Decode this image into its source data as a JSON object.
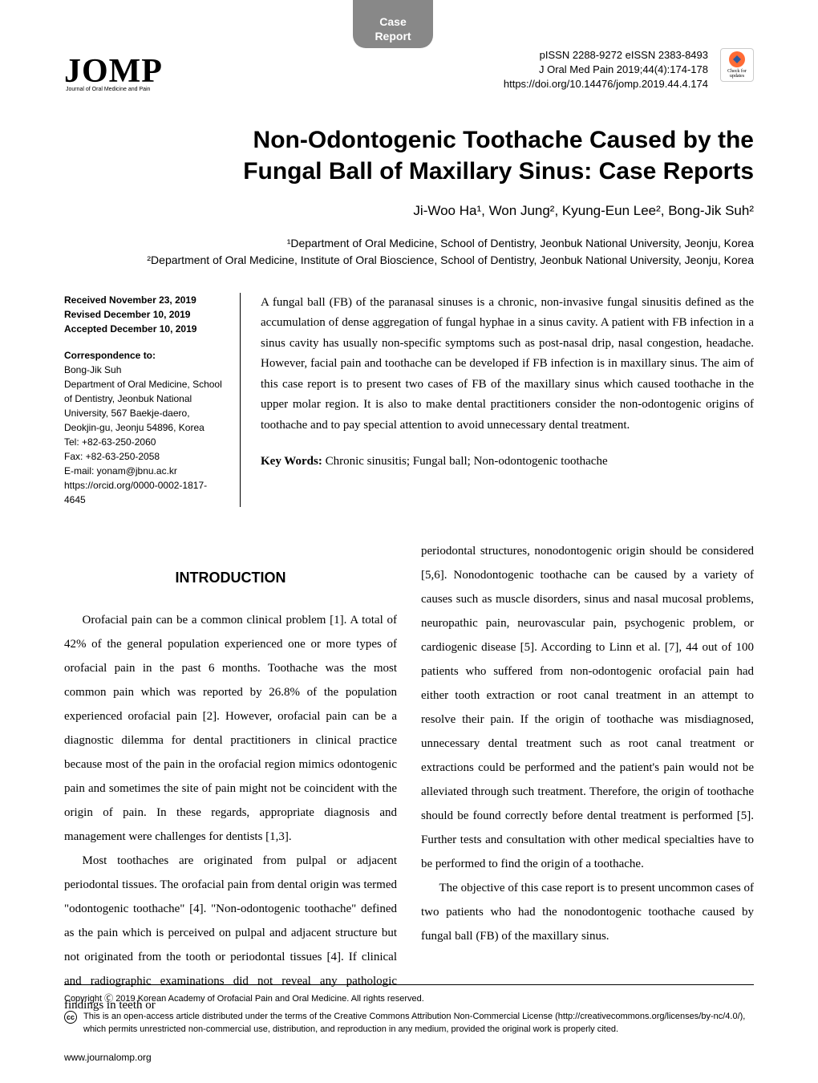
{
  "header": {
    "tab_label_1": "Case",
    "tab_label_2": "Report",
    "logo": "JOMP",
    "subtitle": "Journal of Oral Medicine and Pain",
    "issn": "pISSN 2288-9272   eISSN 2383-8493",
    "citation": "J Oral Med Pain 2019;44(4):174-178",
    "doi": "https://doi.org/10.14476/jomp.2019.44.4.174",
    "check_label": "Check for updates"
  },
  "title_line1": "Non-Odontogenic Toothache Caused by the",
  "title_line2": "Fungal Ball of Maxillary Sinus: Case Reports",
  "authors": "Ji-Woo Ha¹, Won Jung², Kyung-Eun Lee², Bong-Jik Suh²",
  "affiliations": {
    "aff1": "¹Department of Oral Medicine, School of Dentistry, Jeonbuk National University, Jeonju, Korea",
    "aff2": "²Department of Oral Medicine, Institute of Oral Bioscience, School of Dentistry, Jeonbuk National University, Jeonju, Korea"
  },
  "dates": {
    "received_label": "Received ",
    "received": "November 23, 2019",
    "revised_label": "Revised ",
    "revised": "December 10, 2019",
    "accepted_label": "Accepted ",
    "accepted": "December 10, 2019"
  },
  "correspondence": {
    "label": "Correspondence to:",
    "name": "Bong-Jik Suh",
    "dept": "Department of Oral Medicine, School of Dentistry, Jeonbuk National University, 567 Baekje-daero, Deokjin-gu, Jeonju 54896, Korea",
    "tel": "Tel: +82-63-250-2060",
    "fax": "Fax: +82-63-250-2058",
    "email": "E-mail: yonam@jbnu.ac.kr",
    "orcid": "https://orcid.org/0000-0002-1817-4645"
  },
  "abstract": "A fungal ball (FB) of the paranasal sinuses is a chronic, non-invasive fungal sinusitis defined as the accumulation of dense aggregation of fungal hyphae in a sinus cavity. A patient with FB infection in a sinus cavity has usually non-specific symptoms such as post-nasal drip, nasal congestion, headache. However, facial pain and toothache can be developed if FB infection is in maxillary sinus. The aim of this case report is to present two cases of FB of the maxillary sinus which caused toothache in the upper molar region. It is also to make dental practitioners consider the non-odontogenic origins of toothache and to pay special attention to avoid unnecessary dental treatment.",
  "keywords_label": "Key Words: ",
  "keywords": "Chronic sinusitis; Fungal ball; Non-odontogenic toothache",
  "intro_heading": "INTRODUCTION",
  "body": {
    "p1": "Orofacial pain can be a common clinical problem [1]. A total of 42% of the general population experienced one or more types of orofacial pain in the past 6 months. Toothache was the most common pain which was reported by 26.8% of the population experienced orofacial pain [2]. However, orofacial pain can be a diagnostic dilemma for dental practitioners in clinical practice because most of the pain in the orofacial region mimics odontogenic pain and sometimes the site of pain might not be coincident with the origin of pain. In these regards, appropriate diagnosis and management were challenges for dentists [1,3].",
    "p2": "Most toothaches are originated from pulpal or adjacent periodontal tissues. The orofacial pain from dental origin was termed \"odontogenic toothache\" [4]. \"Non-odontogenic toothache\" defined as the pain which is perceived on pulpal and adjacent structure but not originated from the tooth or periodontal tissues [4]. If clinical and radiographic examinations did not reveal any pathologic findings in teeth or",
    "p3": "periodontal structures, nonodontogenic origin should be considered [5,6]. Nonodontogenic toothache can be caused by a variety of causes such as muscle disorders, sinus and nasal mucosal problems, neuropathic pain, neurovascular pain, psychogenic problem, or cardiogenic disease [5]. According to Linn et al. [7], 44 out of 100 patients who suffered from non-odontogenic orofacial pain had either tooth extraction or root canal treatment in an attempt to resolve their pain. If the origin of toothache was misdiagnosed, unnecessary dental treatment such as root canal treatment or extractions could be performed and the patient's pain would not be alleviated through such treatment. Therefore, the origin of toothache should be found correctly before dental treatment is performed [5]. Further tests and consultation with other medical specialties have to be performed to find the origin of a toothache.",
    "p4": "The objective of this case report is to present uncommon cases of two patients who had the nonodontogenic toothache caused by fungal ball (FB) of the maxillary sinus."
  },
  "copyright": "Copyright Ⓒ 2019 Korean Academy of Orofacial Pain and Oral Medicine. All rights reserved.",
  "license": "This is an open-access article distributed under the terms of the Creative Commons Attribution Non-Commercial License (http://creativecommons.org/licenses/by-nc/4.0/), which permits unrestricted non-commercial use, distribution, and reproduction in any medium, provided the original work is properly cited.",
  "url": "www.journalomp.org",
  "colors": {
    "tab_bg": "#888888",
    "text": "#000000",
    "check_orange": "#ff6b35",
    "check_blue": "#2c5aa0"
  },
  "typography": {
    "title_fontsize": 30,
    "body_fontsize": 15,
    "author_fontsize": 17,
    "affiliation_fontsize": 14,
    "leftcol_fontsize": 12,
    "abstract_fontsize": 15,
    "footer_fontsize": 11
  }
}
